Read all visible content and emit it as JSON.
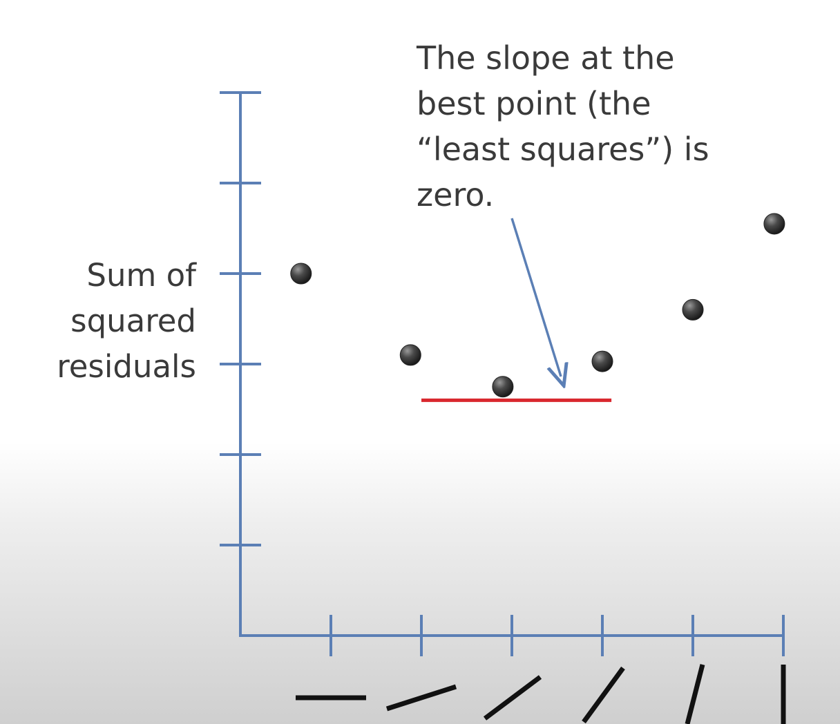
{
  "chart_data": {
    "type": "scatter",
    "ylabel_lines": [
      "Sum of",
      "squared",
      "residuals"
    ],
    "xlabel": "",
    "x_axis_note": "x-axis categories are drawn as line glyphs of increasing slope (0° to 90°)",
    "categories": [
      "slope-1",
      "slope-2",
      "slope-3",
      "slope-4",
      "slope-5",
      "slope-6"
    ],
    "y_ticks": 6,
    "x_ticks": 6,
    "points": [
      {
        "x": 0.67,
        "y": 4.0
      },
      {
        "x": 1.88,
        "y": 3.1
      },
      {
        "x": 2.9,
        "y": 2.75
      },
      {
        "x": 4.0,
        "y": 3.03
      },
      {
        "x": 5.0,
        "y": 3.6
      },
      {
        "x": 5.9,
        "y": 4.55
      }
    ],
    "tangent_line": {
      "x_start": 2.0,
      "x_end": 4.1,
      "y": 2.6,
      "color": "#d9272e"
    },
    "annotation": {
      "lines": [
        "The slope at the",
        "best point (the",
        "“least squares”) is",
        "zero."
      ]
    },
    "axis_color": "#5b7fb5",
    "point_color": "#3c3c3c",
    "grid": false
  }
}
